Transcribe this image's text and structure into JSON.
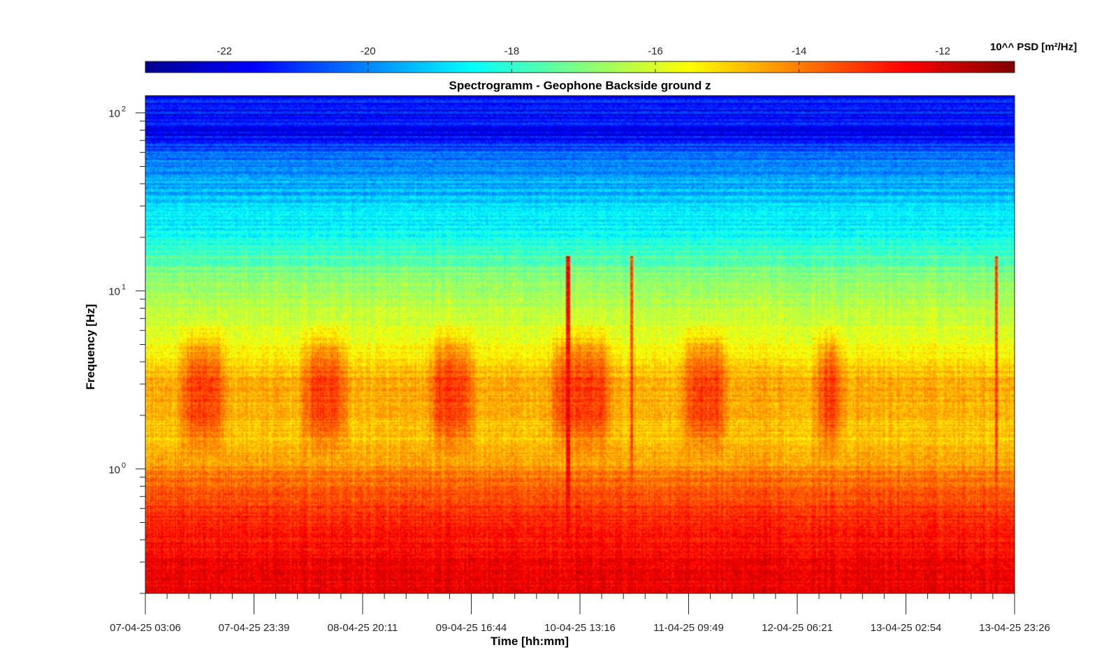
{
  "chart_data": {
    "type": "heatmap",
    "title": "Spectrogramm - Geophone Backside ground z",
    "xlabel": "Time [hh:mm]",
    "ylabel": "Frequency [Hz]",
    "x_ticks": [
      "07-04-25 03:06",
      "07-04-25 23:39",
      "08-04-25 20:11",
      "09-04-25 16:44",
      "10-04-25 13:16",
      "11-04-25 09:49",
      "12-04-25 06:21",
      "13-04-25 02:54",
      "13-04-25 23:26"
    ],
    "x_range": [
      "07-04-25 03:06",
      "13-04-25 23:26"
    ],
    "y_scale": "log",
    "y_range": [
      0.2,
      125
    ],
    "y_ticks": [
      {
        "label": "10",
        "exponent": "0",
        "value": 1
      },
      {
        "label": "10",
        "exponent": "1",
        "value": 10
      },
      {
        "label": "10",
        "exponent": "2",
        "value": 100
      }
    ],
    "colormap": "jet",
    "colorbar": {
      "title": "10^^ PSD [m²/Hz]",
      "range": [
        -23.1,
        -11.0
      ],
      "ticks": [
        "-22",
        "-20",
        "-18",
        "-16",
        "-14",
        "-12"
      ],
      "tick_values": [
        -22,
        -20,
        -18,
        -16,
        -14,
        -12
      ],
      "location": "top"
    },
    "spectrum_profile": {
      "frequency_hz": [
        0.2,
        0.3,
        0.5,
        0.8,
        1.0,
        1.5,
        3.0,
        5.0,
        8.0,
        12.0,
        20.0,
        40.0,
        60.0,
        80.0,
        125.0
      ],
      "log10_psd": [
        -12.2,
        -12.5,
        -12.9,
        -13.6,
        -14.2,
        -14.9,
        -14.5,
        -15.6,
        -16.3,
        -17.0,
        -18.4,
        -19.6,
        -20.5,
        -21.8,
        -21.2
      ]
    },
    "daily_activity_bursts": [
      {
        "start": "07-04-25 09:00",
        "end": "07-04-25 19:00",
        "freq_range_hz": [
          2.0,
          5.0
        ]
      },
      {
        "start": "08-04-25 08:00",
        "end": "08-04-25 18:00",
        "freq_range_hz": [
          2.0,
          5.0
        ]
      },
      {
        "start": "09-04-25 08:00",
        "end": "09-04-25 18:00",
        "freq_range_hz": [
          2.0,
          5.0
        ]
      },
      {
        "start": "10-04-25 07:00",
        "end": "10-04-25 20:00",
        "freq_range_hz": [
          2.0,
          5.0
        ]
      },
      {
        "start": "11-04-25 08:00",
        "end": "11-04-25 18:00",
        "freq_range_hz": [
          2.0,
          5.0
        ]
      },
      {
        "start": "12-04-25 09:00",
        "end": "12-04-25 16:00",
        "freq_range_hz": [
          2.0,
          5.0
        ]
      }
    ],
    "transient_events": [
      {
        "time": "10-04-25 11:00",
        "log10_psd": -12.5
      },
      {
        "time": "10-04-25 23:00",
        "log10_psd": -13.5
      },
      {
        "time": "13-04-25 20:00",
        "log10_psd": -13.5
      }
    ]
  }
}
